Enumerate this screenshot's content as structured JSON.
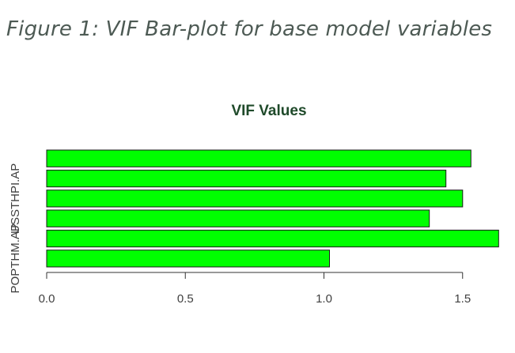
{
  "figure": {
    "caption": "Figure 1: VIF Bar-plot for base model variables"
  },
  "chart_data": {
    "type": "bar",
    "orientation": "horizontal",
    "title": "VIF Values",
    "bar_color": "#00ff00",
    "categories": [
      "POPTHM.AP",
      "",
      "",
      "USSTHPI.AP",
      "",
      ""
    ],
    "values": [
      1.02,
      1.63,
      1.38,
      1.5,
      1.44,
      1.53
    ],
    "x_ticks": [
      0.0,
      0.5,
      1.0,
      1.5
    ],
    "x_tick_labels": [
      "0.0",
      "0.5",
      "1.0",
      "1.5"
    ],
    "xlim": [
      0,
      1.65
    ],
    "xlabel": "",
    "ylabel": "",
    "grid": false,
    "legend": false
  }
}
